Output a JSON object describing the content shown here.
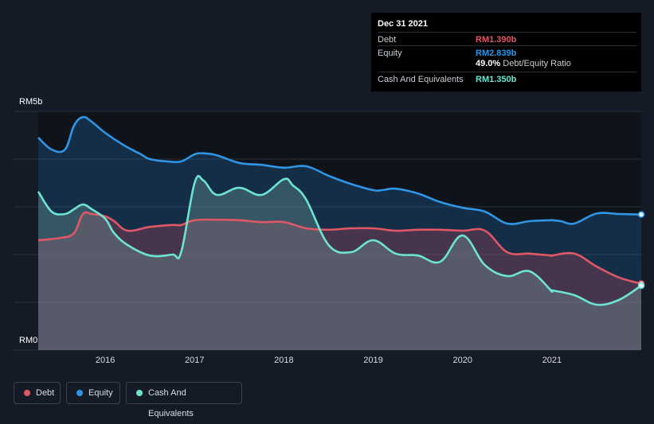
{
  "tooltip": {
    "date": "Dec 31 2021",
    "rows": [
      {
        "label": "Debt",
        "value": "RM1.390b",
        "color": "#e05765"
      },
      {
        "label": "Equity",
        "value": "RM2.839b",
        "color": "#2f95e5"
      },
      {
        "label": "Cash And Equivalents",
        "value": "RM1.350b",
        "color": "#6de4d2"
      }
    ],
    "ratio_value": "49.0%",
    "ratio_label": "Debt/Equity Ratio"
  },
  "legend": [
    {
      "label": "Debt",
      "color": "#e05765"
    },
    {
      "label": "Equity",
      "color": "#2f95e5"
    },
    {
      "label": "Cash And Equivalents",
      "color": "#6de4d2"
    }
  ],
  "chart_data": {
    "type": "area",
    "ylim": [
      0,
      5
    ],
    "y_unit": "RM billions",
    "y_tick_labels": [
      "RM5b",
      "RM0"
    ],
    "x_tick_labels": [
      "2016",
      "2017",
      "2018",
      "2019",
      "2020",
      "2021"
    ],
    "x_ticks": [
      2016,
      2017,
      2018,
      2019,
      2020,
      2021
    ],
    "x_range": [
      2015.25,
      2022.0
    ],
    "grid": true,
    "legend_position": "bottom-left",
    "series": [
      {
        "name": "Equity",
        "color": "#2f95e5",
        "x": [
          2015.25,
          2015.4,
          2015.55,
          2015.65,
          2015.75,
          2015.85,
          2016.0,
          2016.2,
          2016.4,
          2016.5,
          2016.7,
          2016.85,
          2017.0,
          2017.1,
          2017.25,
          2017.5,
          2017.75,
          2018.0,
          2018.25,
          2018.5,
          2018.75,
          2019.0,
          2019.1,
          2019.25,
          2019.5,
          2019.75,
          2020.0,
          2020.25,
          2020.5,
          2020.75,
          2020.99,
          2021.0,
          2021.1,
          2021.25,
          2021.5,
          2021.75,
          2022.0
        ],
        "values": [
          4.45,
          4.2,
          4.2,
          4.7,
          4.88,
          4.78,
          4.55,
          4.3,
          4.1,
          4.0,
          3.95,
          3.95,
          4.1,
          4.12,
          4.08,
          3.92,
          3.88,
          3.82,
          3.85,
          3.65,
          3.48,
          3.35,
          3.35,
          3.38,
          3.28,
          3.1,
          2.98,
          2.9,
          2.65,
          2.7,
          2.72,
          2.72,
          2.7,
          2.65,
          2.86,
          2.85,
          2.839
        ]
      },
      {
        "name": "Debt",
        "color": "#e05765",
        "x": [
          2015.25,
          2015.5,
          2015.65,
          2015.75,
          2015.85,
          2016.0,
          2016.1,
          2016.25,
          2016.5,
          2016.75,
          2016.85,
          2017.0,
          2017.25,
          2017.5,
          2017.75,
          2018.0,
          2018.25,
          2018.5,
          2018.75,
          2019.0,
          2019.25,
          2019.5,
          2019.75,
          2020.0,
          2020.25,
          2020.5,
          2020.75,
          2020.99,
          2021.0,
          2021.25,
          2021.5,
          2021.75,
          2022.0
        ],
        "values": [
          2.3,
          2.35,
          2.45,
          2.85,
          2.85,
          2.8,
          2.7,
          2.5,
          2.58,
          2.62,
          2.62,
          2.72,
          2.73,
          2.72,
          2.68,
          2.68,
          2.55,
          2.52,
          2.55,
          2.55,
          2.5,
          2.52,
          2.52,
          2.5,
          2.5,
          2.05,
          2.02,
          1.98,
          1.98,
          2.02,
          1.75,
          1.52,
          1.39
        ]
      },
      {
        "name": "Cash And Equivalents",
        "color": "#6de4d2",
        "x": [
          2015.25,
          2015.4,
          2015.55,
          2015.65,
          2015.75,
          2015.85,
          2016.0,
          2016.1,
          2016.25,
          2016.5,
          2016.75,
          2016.85,
          2017.0,
          2017.1,
          2017.25,
          2017.5,
          2017.75,
          2018.0,
          2018.1,
          2018.25,
          2018.5,
          2018.75,
          2019.0,
          2019.25,
          2019.5,
          2019.75,
          2020.0,
          2020.25,
          2020.5,
          2020.75,
          2020.99,
          2021.0,
          2021.25,
          2021.5,
          2021.75,
          2022.0
        ],
        "values": [
          3.32,
          2.9,
          2.85,
          2.95,
          3.05,
          2.95,
          2.75,
          2.45,
          2.2,
          1.98,
          2.0,
          2.05,
          3.5,
          3.55,
          3.25,
          3.4,
          3.25,
          3.58,
          3.45,
          3.15,
          2.2,
          2.05,
          2.3,
          2.02,
          1.98,
          1.85,
          2.4,
          1.78,
          1.55,
          1.65,
          1.25,
          1.25,
          1.15,
          0.95,
          1.05,
          1.35
        ]
      }
    ]
  }
}
